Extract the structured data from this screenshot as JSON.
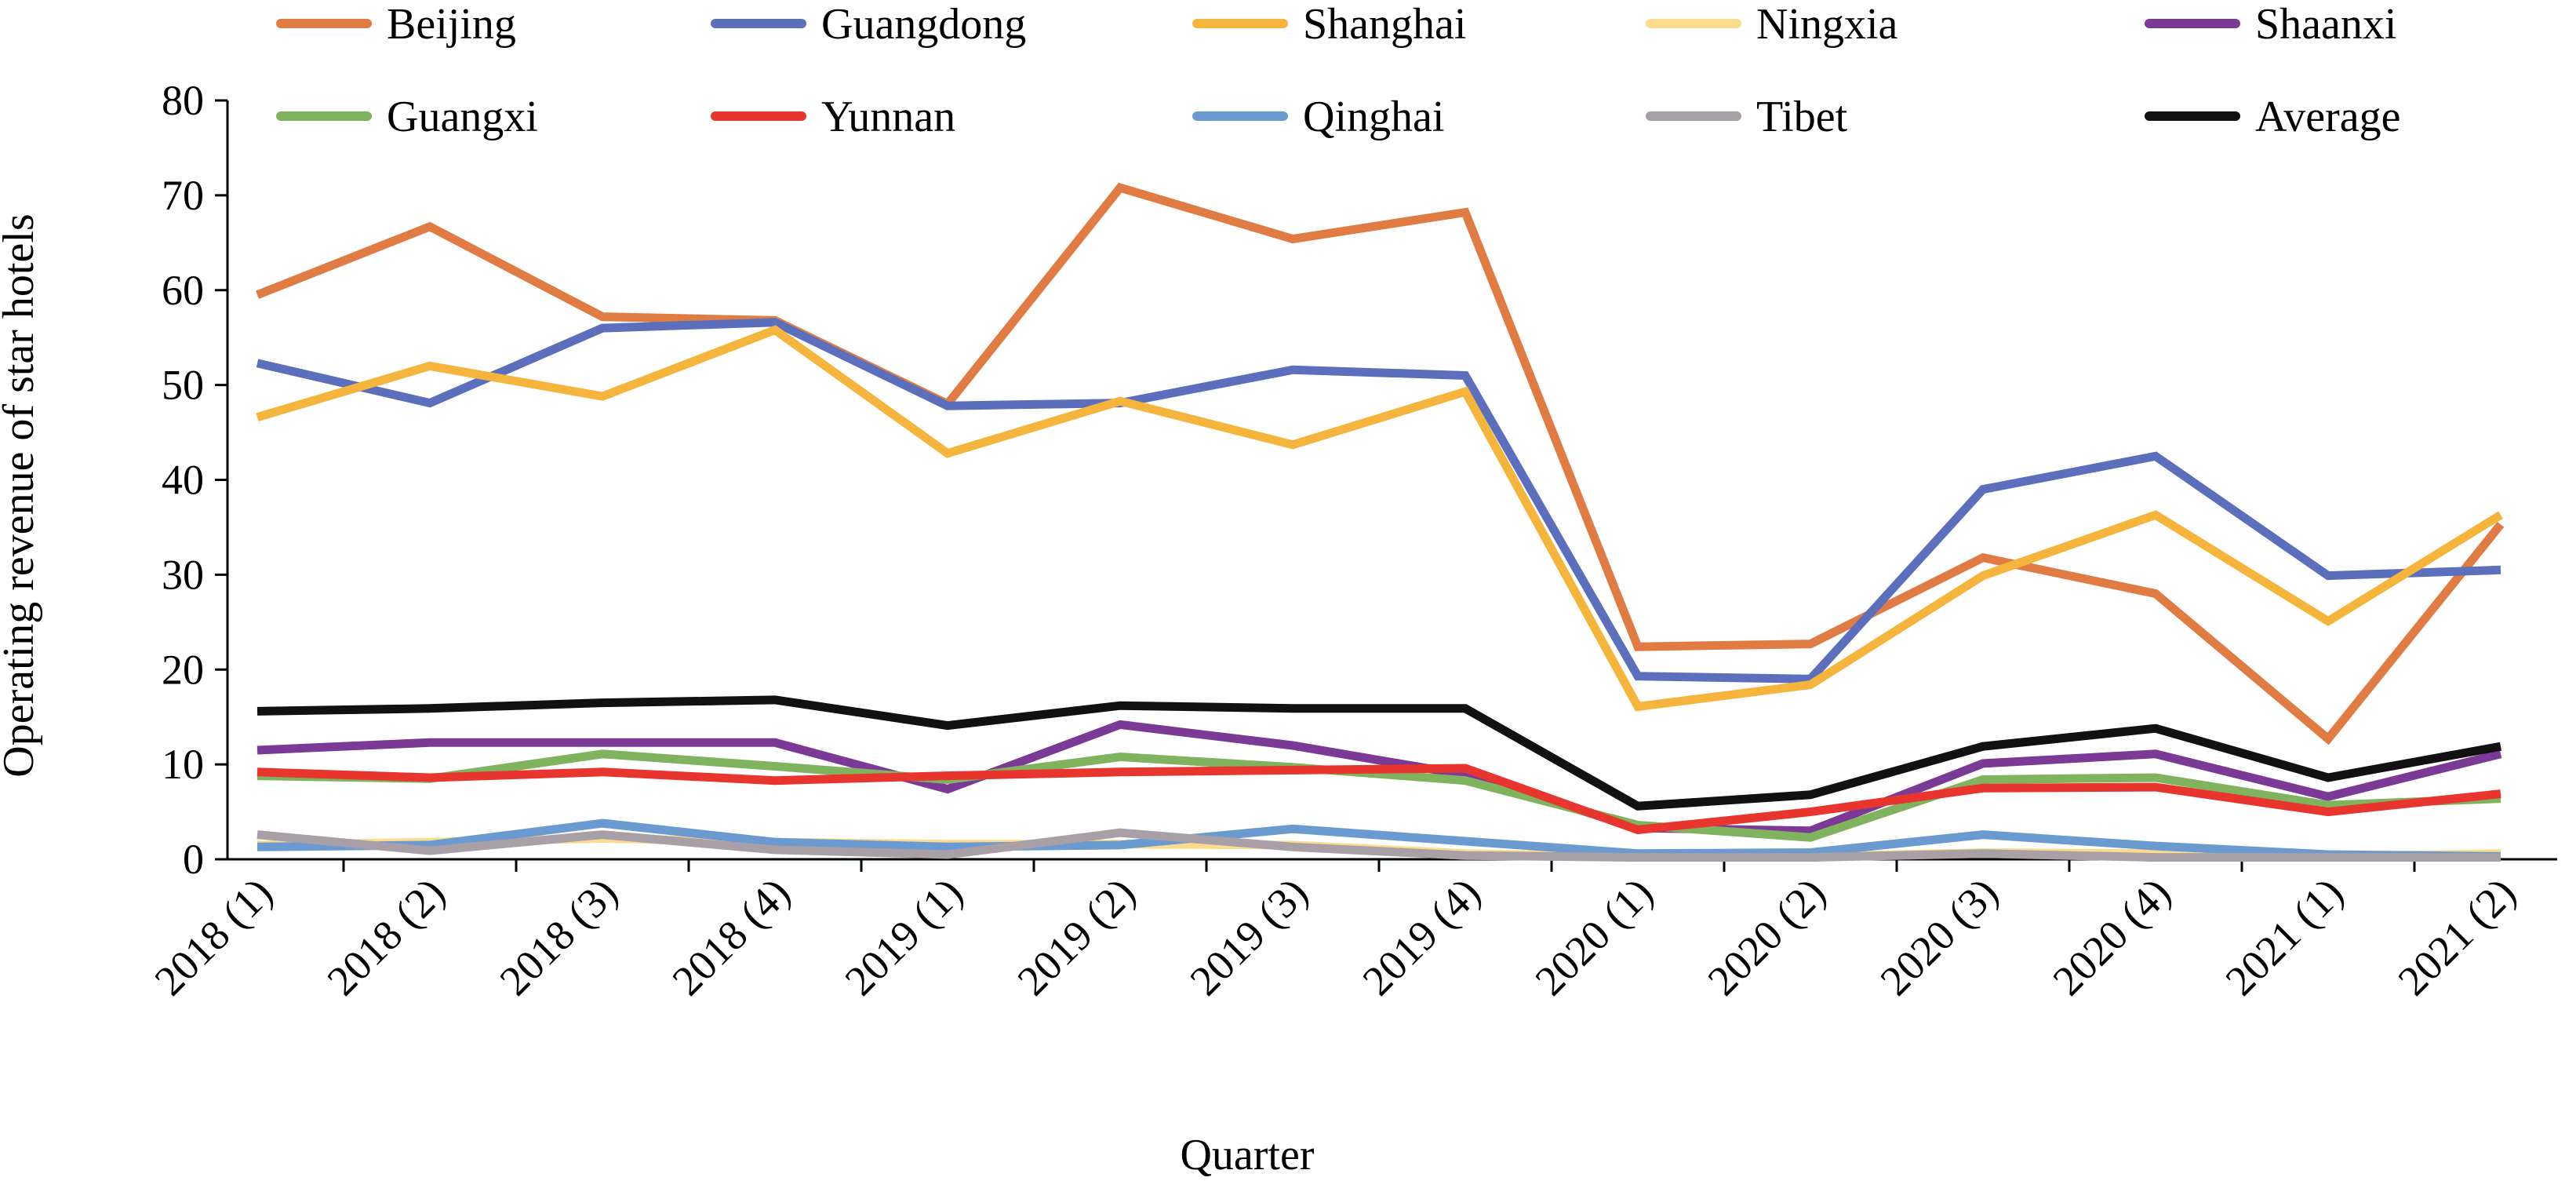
{
  "chart_data": {
    "type": "line",
    "title": "",
    "xlabel": "Quarter",
    "ylabel": "Operating revenue of star hotels",
    "ylim": [
      0,
      80
    ],
    "yticks": [
      "0",
      "10",
      "20",
      "30",
      "40",
      "50",
      "60",
      "70",
      "80"
    ],
    "grid": false,
    "legend_position": "top",
    "categories": [
      "2018 (1)",
      "2018 (2)",
      "2018 (3)",
      "2018 (4)",
      "2019 (1)",
      "2019 (2)",
      "2019 (3)",
      "2019 (4)",
      "2020 (1)",
      "2020 (2)",
      "2020 (3)",
      "2020 (4)",
      "2021 (1)",
      "2021 (2)"
    ],
    "series": [
      {
        "name": "Beijing",
        "color": "#e07b43",
        "values": [
          59.5,
          66.7,
          57.2,
          56.8,
          48.0,
          70.8,
          65.4,
          68.2,
          22.4,
          22.7,
          31.8,
          28.0,
          12.7,
          35.3
        ]
      },
      {
        "name": "Guangdong",
        "color": "#5b6fbd",
        "values": [
          52.3,
          48.1,
          56.0,
          56.6,
          47.8,
          48.1,
          51.6,
          51.0,
          19.3,
          19.0,
          39.0,
          42.5,
          29.9,
          30.5
        ]
      },
      {
        "name": "Shanghai",
        "color": "#f5b43c",
        "values": [
          46.6,
          52.0,
          48.8,
          55.8,
          42.8,
          48.3,
          43.7,
          49.3,
          16.1,
          18.4,
          29.9,
          36.3,
          25.1,
          36.3
        ]
      },
      {
        "name": "Ningxia",
        "color": "#fbdc8e",
        "values": [
          1.5,
          1.8,
          2.2,
          1.8,
          1.6,
          1.6,
          1.5,
          0.6,
          0.3,
          0.3,
          0.7,
          0.6,
          0.3,
          0.6
        ]
      },
      {
        "name": "Shaanxi",
        "color": "#7b3a95",
        "values": [
          11.5,
          12.3,
          12.3,
          12.3,
          7.4,
          14.2,
          12.0,
          8.9,
          3.3,
          3.0,
          10.1,
          11.1,
          6.6,
          11.1
        ]
      },
      {
        "name": "Guangxi",
        "color": "#7fb35e",
        "values": [
          8.8,
          8.5,
          11.1,
          9.8,
          8.4,
          10.8,
          9.7,
          8.3,
          3.6,
          2.3,
          8.4,
          8.6,
          5.7,
          6.4
        ]
      },
      {
        "name": "Yunnan",
        "color": "#e8352e",
        "values": [
          9.2,
          8.6,
          9.2,
          8.3,
          8.8,
          9.2,
          9.4,
          9.6,
          3.1,
          5.0,
          7.5,
          7.6,
          5.0,
          6.9
        ]
      },
      {
        "name": "Qinghai",
        "color": "#6b9ad1",
        "values": [
          1.3,
          1.5,
          3.8,
          1.8,
          1.3,
          1.5,
          3.2,
          1.9,
          0.6,
          0.7,
          2.6,
          1.4,
          0.5,
          0.3
        ]
      },
      {
        "name": "Tibet",
        "color": "#a99fa6",
        "values": [
          2.6,
          0.9,
          2.6,
          1.0,
          0.5,
          2.8,
          1.3,
          0.4,
          0.2,
          0.2,
          0.6,
          0.2,
          0.2,
          0.2
        ]
      },
      {
        "name": "Average",
        "color": "#111111",
        "values": [
          15.6,
          15.9,
          16.5,
          16.8,
          14.1,
          16.2,
          15.9,
          15.9,
          5.6,
          6.8,
          11.9,
          13.8,
          8.6,
          11.9
        ]
      }
    ]
  }
}
